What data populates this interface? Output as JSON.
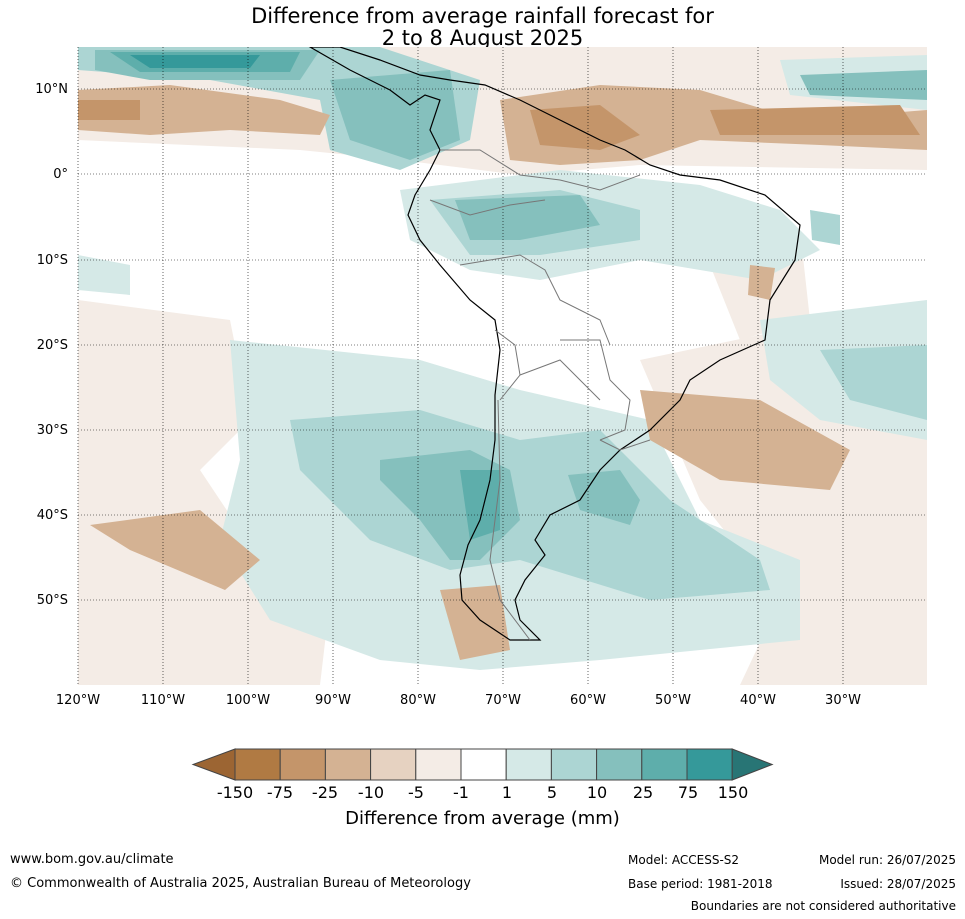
{
  "title": {
    "line1": "Difference from average rainfall forecast for",
    "line2": "2 to 8 August 2025"
  },
  "map": {
    "lat_labels": [
      "10°N",
      "0°",
      "10°S",
      "20°S",
      "30°S",
      "40°S",
      "50°S"
    ],
    "lon_labels": [
      "120°W",
      "110°W",
      "100°W",
      "90°W",
      "80°W",
      "70°W",
      "60°W",
      "50°W",
      "40°W",
      "30°W"
    ]
  },
  "colorbar": {
    "title": "Difference from average (mm)",
    "labels": [
      "-150",
      "-75",
      "-25",
      "-10",
      "-5",
      "-1",
      "1",
      "5",
      "10",
      "25",
      "75",
      "150"
    ],
    "colors": [
      "#9c6533",
      "#b07a43",
      "#c4956a",
      "#d4b293",
      "#e6d2c1",
      "#f4ece6",
      "#ffffff",
      "#d5e9e7",
      "#acd5d3",
      "#85c0bd",
      "#5eaeab",
      "#35999a",
      "#287575"
    ]
  },
  "footer": {
    "url": "www.bom.gov.au/climate",
    "copyright": "© Commonwealth of Australia 2025, Australian Bureau of Meteorology",
    "model": "Model: ACCESS-S2",
    "base_period": "Base period: 1981-2018",
    "model_run": "Model run: 26/07/2025",
    "issued": "Issued: 28/07/2025",
    "disclaimer": "Boundaries are not considered authoritative"
  }
}
